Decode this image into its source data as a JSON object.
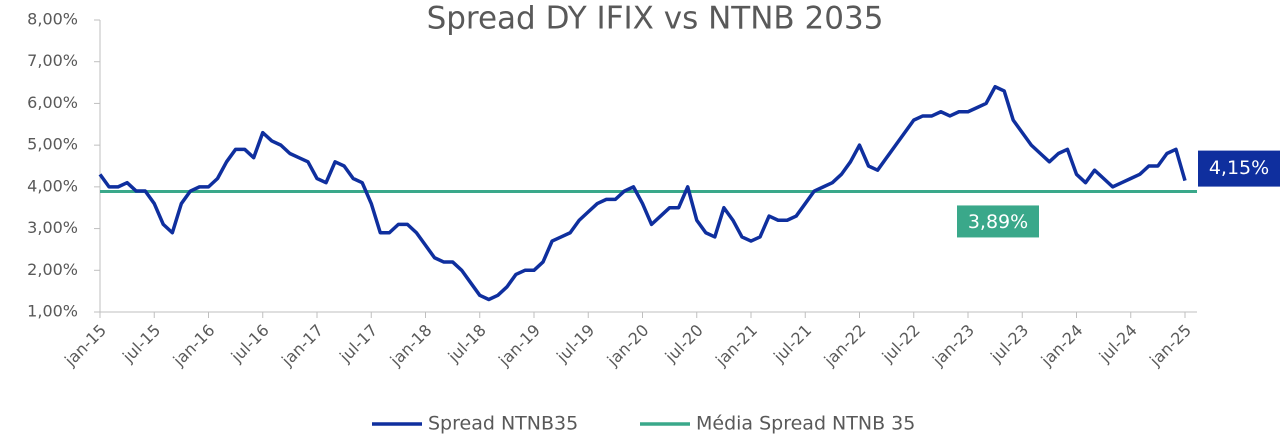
{
  "chart_data": {
    "type": "line",
    "title": "Spread DY IFIX vs NTNB 2035",
    "categories": [
      "jan-15",
      null,
      null,
      null,
      null,
      null,
      "jul-15",
      null,
      null,
      null,
      null,
      null,
      "jan-16",
      null,
      null,
      null,
      null,
      null,
      "jul-16",
      null,
      null,
      null,
      null,
      null,
      "jan-17",
      null,
      null,
      null,
      null,
      null,
      "jul-17",
      null,
      null,
      null,
      null,
      null,
      "jan-18",
      null,
      null,
      null,
      null,
      null,
      "jul-18",
      null,
      null,
      null,
      null,
      null,
      "jan-19",
      null,
      null,
      null,
      null,
      null,
      "jul-19",
      null,
      null,
      null,
      null,
      null,
      "jan-20",
      null,
      null,
      null,
      null,
      null,
      "jul-20",
      null,
      null,
      null,
      null,
      null,
      "jan-21",
      null,
      null,
      null,
      null,
      null,
      "jul-21",
      null,
      null,
      null,
      null,
      null,
      "jan-22",
      null,
      null,
      null,
      null,
      null,
      "jul-22",
      null,
      null,
      null,
      null,
      null,
      "jan-23",
      null,
      null,
      null,
      null,
      null,
      "jul-23",
      null,
      null,
      null,
      null,
      null,
      "jan-24",
      null,
      null,
      null,
      null,
      null,
      "jul-24",
      null,
      null,
      null,
      null,
      null,
      "jan-25"
    ],
    "series": [
      {
        "name": "Spread NTNB35",
        "color": "#0f2f9e",
        "values": [
          4.3,
          4.0,
          4.0,
          4.1,
          3.9,
          3.9,
          3.6,
          3.1,
          2.9,
          3.6,
          3.9,
          4.0,
          4.0,
          4.2,
          4.6,
          4.9,
          4.9,
          4.7,
          5.3,
          5.1,
          5.0,
          4.8,
          4.7,
          4.6,
          4.2,
          4.1,
          4.6,
          4.5,
          4.2,
          4.1,
          3.6,
          2.9,
          2.9,
          3.1,
          3.1,
          2.9,
          2.6,
          2.3,
          2.2,
          2.2,
          2.0,
          1.7,
          1.4,
          1.3,
          1.4,
          1.6,
          1.9,
          2.0,
          2.0,
          2.2,
          2.7,
          2.8,
          2.9,
          3.2,
          3.4,
          3.6,
          3.7,
          3.7,
          3.9,
          4.0,
          3.6,
          3.1,
          3.3,
          3.5,
          3.5,
          4.0,
          3.2,
          2.9,
          2.8,
          3.5,
          3.2,
          2.8,
          2.7,
          2.8,
          3.3,
          3.2,
          3.2,
          3.3,
          3.6,
          3.9,
          4.0,
          4.1,
          4.3,
          4.6,
          5.0,
          4.5,
          4.4,
          4.7,
          5.0,
          5.3,
          5.6,
          5.7,
          5.7,
          5.8,
          5.7,
          5.8,
          5.8,
          5.9,
          6.0,
          6.4,
          6.3,
          5.6,
          5.3,
          5.0,
          4.8,
          4.6,
          4.8,
          4.9,
          4.3,
          4.1,
          4.4,
          4.2,
          4.0,
          4.1,
          4.2,
          4.3,
          4.5,
          4.5,
          4.8,
          4.9,
          4.15
        ],
        "value_labels": [
          null,
          null,
          null,
          null,
          null,
          null,
          null,
          null,
          null,
          null,
          null,
          null,
          null,
          null,
          null,
          null,
          null,
          null,
          null,
          null,
          null,
          null,
          null,
          null,
          null,
          null,
          null,
          null,
          null,
          null,
          null,
          null,
          null,
          null,
          null,
          null,
          null,
          null,
          null,
          null,
          null,
          null,
          null,
          null,
          null,
          null,
          null,
          null,
          null,
          null,
          null,
          null,
          null,
          null,
          null,
          null,
          null,
          null,
          null,
          null,
          null,
          null,
          null,
          null,
          null,
          null,
          null,
          null,
          null,
          null,
          null,
          null,
          null,
          null,
          null,
          null,
          null,
          null,
          null,
          null,
          null,
          null,
          null,
          null,
          null,
          null,
          null,
          null,
          null,
          null,
          null,
          null,
          null,
          null,
          null,
          null,
          null,
          null,
          null,
          null,
          null,
          null,
          null,
          null,
          null,
          null,
          null,
          null,
          null,
          null,
          null,
          null,
          null,
          null,
          null,
          null,
          null,
          null,
          null,
          null,
          "4,15%"
        ]
      }
    ],
    "reference_line": {
      "name": "Média Spread NTNB 35",
      "color": "#3aa88a",
      "value": 3.89,
      "value_label": "3,89%"
    },
    "ylim": [
      1,
      8
    ],
    "yticks": [
      {
        "value": 1,
        "label": "1,00%"
      },
      {
        "value": 2,
        "label": "2,00%"
      },
      {
        "value": 3,
        "label": "3,00%"
      },
      {
        "value": 4,
        "label": "4,00%"
      },
      {
        "value": 5,
        "label": "5,00%"
      },
      {
        "value": 6,
        "label": "6,00%"
      },
      {
        "value": 7,
        "label": "7,00%"
      },
      {
        "value": 8,
        "label": "8,00%"
      }
    ],
    "grid": false,
    "legend": "bottom"
  }
}
